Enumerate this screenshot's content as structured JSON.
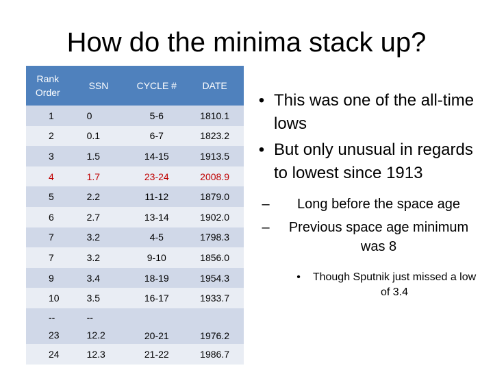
{
  "title": "How do the minima stack up?",
  "table": {
    "headers": [
      "Rank Order",
      "SSN",
      "CYCLE #",
      "DATE"
    ],
    "rows": [
      {
        "rank": "1",
        "ssn": "0",
        "cycle": "5-6",
        "date": "1810.1"
      },
      {
        "rank": "2",
        "ssn": "0.1",
        "cycle": "6-7",
        "date": "1823.2"
      },
      {
        "rank": "3",
        "ssn": "1.5",
        "cycle": "14-15",
        "date": "1913.5"
      },
      {
        "rank": "4",
        "ssn": "1.7",
        "cycle": "23-24",
        "date": "2008.9"
      },
      {
        "rank": "5",
        "ssn": "2.2",
        "cycle": "11-12",
        "date": "1879.0"
      },
      {
        "rank": "6",
        "ssn": "2.7",
        "cycle": "13-14",
        "date": "1902.0"
      },
      {
        "rank": "7",
        "ssn": "3.2",
        "cycle": "4-5",
        "date": "1798.3"
      },
      {
        "rank": "7",
        "ssn": "3.2",
        "cycle": "9-10",
        "date": "1856.0"
      },
      {
        "rank": "9",
        "ssn": "3.4",
        "cycle": "18-19",
        "date": "1954.3"
      },
      {
        "rank": "10",
        "ssn": "3.5",
        "cycle": "16-17",
        "date": "1933.7"
      },
      {
        "rank": "--\n23",
        "ssn": "--\n12.2",
        "cycle": "20-21",
        "date": "1976.2"
      },
      {
        "rank": "24",
        "ssn": "12.3",
        "cycle": "21-22",
        "date": "1986.7"
      }
    ],
    "highlight_color": "#c00000",
    "header_color": "#4f81bd"
  },
  "bullets": {
    "b1": "This was one of the all-time lows",
    "b2": "But only unusual in regards to lowest since 1913",
    "b3": "Long before the space age",
    "b4": "Previous space age minimum was 8",
    "b5": "Though Sputnik just missed a low of 3.4"
  }
}
